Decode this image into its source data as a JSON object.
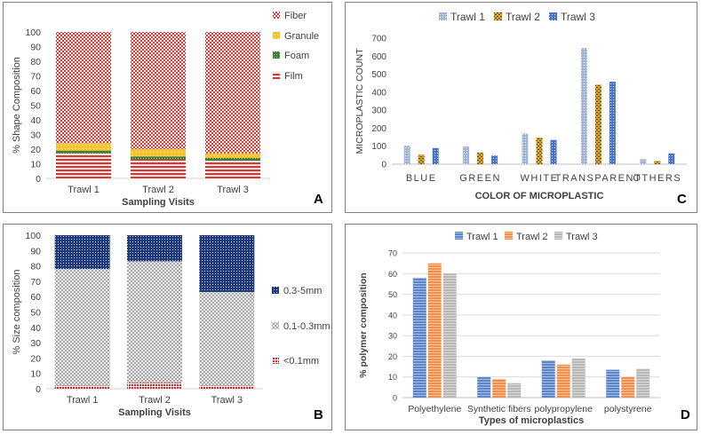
{
  "chart_data": [
    {
      "panel": "A",
      "type": "bar",
      "stacked": true,
      "categories": [
        "Trawl 1",
        "Trawl 2",
        "Trawl 3"
      ],
      "series": [
        {
          "name": "Film",
          "values": [
            17,
            13,
            12
          ]
        },
        {
          "name": "Foam",
          "values": [
            2,
            2,
            2
          ]
        },
        {
          "name": "Granule",
          "values": [
            5,
            5,
            3
          ]
        },
        {
          "name": "Fiber",
          "values": [
            76,
            80,
            83
          ]
        }
      ],
      "legend_order": [
        "Fiber",
        "Granule",
        "Foam",
        "Film"
      ],
      "ylim": [
        0,
        100
      ],
      "yticks": [
        0,
        10,
        20,
        30,
        40,
        50,
        60,
        70,
        80,
        90,
        100
      ],
      "title": "",
      "xlabel": "Sampling Visits",
      "ylabel": "%  Shape Composition",
      "legend_position": "right",
      "label": "A"
    },
    {
      "panel": "B",
      "type": "bar",
      "stacked": true,
      "categories": [
        "Trawl 1",
        "Trawl 2",
        "Trawl 3"
      ],
      "series": [
        {
          "name": "<0.1mm",
          "values": [
            2,
            4,
            2
          ]
        },
        {
          "name": "0.1-0.3mm",
          "values": [
            76,
            79,
            61
          ]
        },
        {
          "name": "0.3-5mm",
          "values": [
            22,
            17,
            37
          ]
        }
      ],
      "legend_order": [
        "0.3-5mm",
        "0.1-0.3mm",
        "<0.1mm"
      ],
      "ylim": [
        0,
        100
      ],
      "yticks": [
        0,
        10,
        20,
        30,
        40,
        50,
        60,
        70,
        80,
        90,
        100
      ],
      "title": "",
      "xlabel": "Sampling Visits",
      "ylabel": "% Size composition",
      "legend_position": "right",
      "label": "B"
    },
    {
      "panel": "C",
      "type": "bar",
      "stacked": false,
      "categories": [
        "BLUE",
        "GREEN",
        "WHITE",
        "TRANSPARENT",
        "OTHERS"
      ],
      "series": [
        {
          "name": "Trawl 1",
          "values": [
            102,
            98,
            170,
            645,
            28
          ]
        },
        {
          "name": "Trawl 2",
          "values": [
            52,
            65,
            148,
            442,
            18
          ]
        },
        {
          "name": "Trawl 3",
          "values": [
            90,
            48,
            135,
            458,
            60
          ]
        }
      ],
      "ylim": [
        0,
        700
      ],
      "yticks": [
        0,
        100,
        200,
        300,
        400,
        500,
        600,
        700
      ],
      "title": "",
      "xlabel": "COLOR OF MICROPLASTIC",
      "ylabel": "MICROPLASTIC COUNT",
      "legend_position": "top",
      "label": "C"
    },
    {
      "panel": "D",
      "type": "bar",
      "stacked": false,
      "categories": [
        "Polyethylene",
        "Synthetic fibers",
        "polypropylene",
        "polystyrene"
      ],
      "series": [
        {
          "name": "Trawl 1",
          "values": [
            58,
            10,
            18,
            13.5
          ]
        },
        {
          "name": "Trawl 2",
          "values": [
            65,
            9,
            16,
            10
          ]
        },
        {
          "name": "Trawl 3",
          "values": [
            60,
            7,
            19,
            14
          ]
        }
      ],
      "ylim": [
        0,
        70
      ],
      "yticks": [
        0,
        10,
        20,
        30,
        40,
        50,
        60,
        70
      ],
      "title": "",
      "xlabel": "Types of microplastics",
      "ylabel": "% polymer composition",
      "legend_position": "top",
      "label": "D"
    }
  ],
  "colors": {
    "film": "#e0332b",
    "foam": "#3f7f3a",
    "granule": "#f4c430",
    "fiber": "#e8302a",
    "size_small": "#e02020",
    "size_mid": "#9a9a9a",
    "size_large": "#1f3a7a",
    "c_trawl1": "#9fb4d8",
    "c_trawl2": "#d4a52c",
    "c_trawl3": "#4a73c8",
    "d_trawl1": "#5b86c8",
    "d_trawl2": "#f28f4a",
    "d_trawl3": "#b8b8b8"
  }
}
